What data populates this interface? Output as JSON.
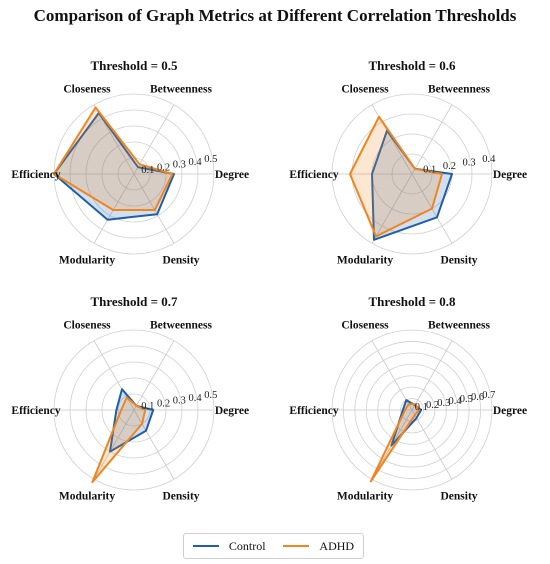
{
  "title": "Comparison of Graph Metrics at Different Correlation Thresholds",
  "colors": {
    "control": "#1f5fa8",
    "adhd": "#f0851e",
    "grid": "#d0d0d0",
    "axis": "#c8c8c8"
  },
  "legend": {
    "placement": "bottom-center",
    "entries": [
      "Control",
      "ADHD"
    ]
  },
  "chart_data": [
    {
      "type": "radar",
      "title": "Threshold = 0.5",
      "categories": [
        "Degree",
        "Betweenness",
        "Closeness",
        "Efficiency",
        "Modularity",
        "Density"
      ],
      "rmax": 0.5,
      "ticks": [
        0.1,
        0.2,
        0.3,
        0.4,
        0.5
      ],
      "tick_labels": [
        "0.1",
        "0.2",
        "0.3",
        "0.4",
        "0.5"
      ],
      "series": [
        {
          "name": "Control",
          "values": [
            0.25,
            0.05,
            0.44,
            0.5,
            0.33,
            0.29
          ]
        },
        {
          "name": "ADHD",
          "values": [
            0.24,
            0.07,
            0.48,
            0.5,
            0.26,
            0.26
          ]
        }
      ]
    },
    {
      "type": "radar",
      "title": "Threshold = 0.6",
      "categories": [
        "Degree",
        "Betweenness",
        "Closeness",
        "Efficiency",
        "Modularity",
        "Density"
      ],
      "rmax": 0.4,
      "ticks": [
        0.1,
        0.2,
        0.3,
        0.4
      ],
      "tick_labels": [
        "0.1",
        "0.2",
        "0.3",
        "0.4"
      ],
      "series": [
        {
          "name": "Control",
          "values": [
            0.2,
            0.03,
            0.25,
            0.2,
            0.38,
            0.25
          ]
        },
        {
          "name": "ADHD",
          "values": [
            0.15,
            0.03,
            0.33,
            0.31,
            0.36,
            0.2
          ]
        }
      ]
    },
    {
      "type": "radar",
      "title": "Threshold = 0.7",
      "categories": [
        "Degree",
        "Betweenness",
        "Closeness",
        "Efficiency",
        "Modularity",
        "Density"
      ],
      "rmax": 0.5,
      "ticks": [
        0.1,
        0.2,
        0.3,
        0.4,
        0.5
      ],
      "tick_labels": [
        "0.1",
        "0.2",
        "0.3",
        "0.4",
        "0.5"
      ],
      "series": [
        {
          "name": "Control",
          "values": [
            0.12,
            0.03,
            0.15,
            0.11,
            0.3,
            0.15
          ]
        },
        {
          "name": "ADHD",
          "values": [
            0.07,
            0.03,
            0.09,
            0.08,
            0.52,
            0.1
          ]
        }
      ]
    },
    {
      "type": "radar",
      "title": "Threshold = 0.8",
      "categories": [
        "Degree",
        "Betweenness",
        "Closeness",
        "Efficiency",
        "Modularity",
        "Density"
      ],
      "rmax": 0.7,
      "ticks": [
        0.1,
        0.2,
        0.3,
        0.4,
        0.5,
        0.6,
        0.7
      ],
      "tick_labels": [
        "0.1",
        "0.2",
        "0.3",
        "0.4",
        "0.5",
        "0.6",
        "0.7"
      ],
      "series": [
        {
          "name": "Control",
          "values": [
            0.08,
            0.05,
            0.1,
            0.08,
            0.36,
            0.08
          ]
        },
        {
          "name": "ADHD",
          "values": [
            0.06,
            0.06,
            0.06,
            0.06,
            0.72,
            0.05
          ]
        }
      ]
    }
  ]
}
